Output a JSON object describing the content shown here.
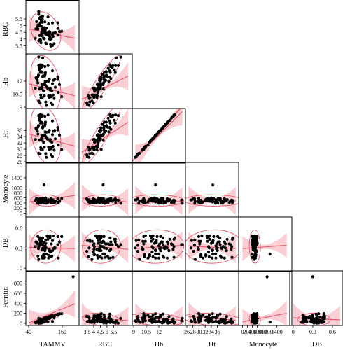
{
  "chart_data": {
    "type": "scatter",
    "variables": [
      "RBC",
      "Hb",
      "Ht",
      "Monocyte",
      "DB",
      "Ferritin"
    ],
    "x_variables": [
      "TAMMV",
      "RBC",
      "Hb",
      "Ht",
      "Monocyte",
      "DB"
    ],
    "axes": {
      "TAMMV": {
        "range": [
          35,
          215
        ],
        "ticks": [
          {
            "v": 40,
            "t": "40"
          },
          {
            "v": 160,
            "t": "160"
          }
        ]
      },
      "RBC": {
        "range": [
          3.0,
          6.8
        ],
        "ticks": [
          {
            "v": 3.5,
            "t": "3.5"
          },
          {
            "v": 4,
            "t": "4"
          },
          {
            "v": 4.5,
            "t": "4.5"
          },
          {
            "v": 5,
            "t": "5"
          },
          {
            "v": 5.5,
            "t": "5.5"
          }
        ]
      },
      "Hb": {
        "range": [
          9,
          15
        ],
        "ticks": [
          {
            "v": 9,
            "t": "9"
          },
          {
            "v": 10.5,
            "t": "10.5"
          },
          {
            "v": 12,
            "t": "12"
          }
        ]
      },
      "Ht": {
        "range": [
          26,
          42.5
        ],
        "ticks": [
          {
            "v": 26,
            "t": "26"
          },
          {
            "v": 28,
            "t": "28"
          },
          {
            "v": 30,
            "t": "30"
          },
          {
            "v": 32,
            "t": "32"
          },
          {
            "v": 34,
            "t": "34"
          },
          {
            "v": 36,
            "t": "36"
          }
        ]
      },
      "Monocyte": {
        "range": [
          -100,
          1950
        ],
        "ticks": [
          {
            "v": 0,
            "t": "0"
          },
          {
            "v": 200,
            "t": "200"
          },
          {
            "v": 400,
            "t": "400"
          },
          {
            "v": 600,
            "t": "600"
          },
          {
            "v": 800,
            "t": "800"
          },
          {
            "v": 1000,
            "t": "1000"
          },
          {
            "v": 1400,
            "t": "1400"
          }
        ]
      },
      "DB": {
        "range": [
          -0.03,
          0.74
        ],
        "ticks": [
          {
            "v": 0,
            "t": "0"
          },
          {
            "v": 0.3,
            "t": "0.3"
          },
          {
            "v": 0.6,
            "t": "0.6"
          }
        ]
      },
      "Ferritin": {
        "range": [
          -15,
          1020
        ],
        "ticks": [
          {
            "v": 0,
            "t": "0"
          },
          {
            "v": 200,
            "t": "200"
          },
          {
            "v": 400,
            "t": "400"
          },
          {
            "v": 600,
            "t": "600"
          },
          {
            "v": 800,
            "t": "800"
          }
        ]
      }
    },
    "panels": [
      {
        "x": "TAMMV",
        "y": "RBC",
        "fit": [
          [
            40,
            4.75
          ],
          [
            205,
            4.05
          ]
        ]
      },
      {
        "x": "TAMMV",
        "y": "Hb",
        "fit": [
          [
            40,
            11.7
          ],
          [
            205,
            10.3
          ]
        ]
      },
      {
        "x": "RBC",
        "y": "Hb",
        "fit": [
          [
            3.1,
            9.9
          ],
          [
            6.6,
            12.6
          ]
        ]
      },
      {
        "x": "TAMMV",
        "y": "Ht",
        "fit": [
          [
            40,
            34.8
          ],
          [
            205,
            31.0
          ]
        ]
      },
      {
        "x": "RBC",
        "y": "Ht",
        "fit": [
          [
            3.1,
            29.0
          ],
          [
            6.6,
            38.6
          ]
        ]
      },
      {
        "x": "Hb",
        "y": "Ht",
        "fit": [
          [
            9.2,
            27.0
          ],
          [
            14.8,
            42.0
          ]
        ]
      },
      {
        "x": "TAMMV",
        "y": "Monocyte",
        "fit": [
          [
            40,
            440
          ],
          [
            205,
            700
          ]
        ]
      },
      {
        "x": "RBC",
        "y": "Monocyte",
        "fit": [
          [
            3.1,
            600
          ],
          [
            6.6,
            440
          ]
        ]
      },
      {
        "x": "Hb",
        "y": "Monocyte",
        "fit": [
          [
            9.2,
            520
          ],
          [
            14.8,
            470
          ]
        ]
      },
      {
        "x": "Ht",
        "y": "Monocyte",
        "fit": [
          [
            26.5,
            520
          ],
          [
            42,
            480
          ]
        ]
      },
      {
        "x": "TAMMV",
        "y": "DB",
        "fit": [
          [
            40,
            0.31
          ],
          [
            205,
            0.29
          ]
        ]
      },
      {
        "x": "RBC",
        "y": "DB",
        "fit": [
          [
            3.1,
            0.34
          ],
          [
            6.6,
            0.28
          ]
        ]
      },
      {
        "x": "Hb",
        "y": "DB",
        "fit": [
          [
            9.2,
            0.29
          ],
          [
            14.8,
            0.34
          ]
        ]
      },
      {
        "x": "Ht",
        "y": "DB",
        "fit": [
          [
            26.5,
            0.33
          ],
          [
            42,
            0.29
          ]
        ]
      },
      {
        "x": "Monocyte",
        "y": "DB",
        "fit": [
          [
            0,
            0.29
          ],
          [
            1800,
            0.34
          ]
        ]
      },
      {
        "x": "TAMMV",
        "y": "Ferritin",
        "fit": [
          [
            40,
            10
          ],
          [
            205,
            390
          ]
        ]
      },
      {
        "x": "RBC",
        "y": "Ferritin",
        "fit": [
          [
            3.1,
            130
          ],
          [
            6.6,
            55
          ]
        ]
      },
      {
        "x": "Hb",
        "y": "Ferritin",
        "fit": [
          [
            9.2,
            120
          ],
          [
            14.8,
            60
          ]
        ]
      },
      {
        "x": "Ht",
        "y": "Ferritin",
        "fit": [
          [
            26.5,
            135
          ],
          [
            42,
            60
          ]
        ]
      },
      {
        "x": "Monocyte",
        "y": "Ferritin",
        "fit": [
          [
            0,
            30
          ],
          [
            1800,
            200
          ]
        ]
      },
      {
        "x": "DB",
        "y": "Ferritin",
        "fit": [
          [
            0,
            110
          ],
          [
            0.72,
            70
          ]
        ]
      }
    ],
    "data": {
      "TAMMV": [
        114,
        103,
        79,
        83,
        146,
        95,
        78,
        81,
        96,
        76,
        91,
        125,
        68,
        85,
        66,
        82,
        89,
        127,
        89,
        99,
        94,
        158,
        73,
        87,
        128,
        101,
        71,
        76,
        116,
        109,
        131,
        86,
        125,
        118,
        76,
        103,
        150,
        99,
        90,
        101,
        111,
        89,
        75,
        79,
        116,
        117,
        123,
        95,
        85,
        144,
        97,
        135,
        98,
        133,
        73,
        84,
        144,
        93,
        107,
        111,
        88,
        98,
        64,
        125,
        120,
        82,
        114,
        121,
        100,
        88,
        90,
        106
      ],
      "RBC": [
        4.02,
        3.65,
        4.26,
        3.89,
        4.31,
        4.71,
        5.55,
        3.97,
        4.02,
        6.04,
        4.79,
        3.52,
        5.29,
        5.4,
        4.76,
        5.63,
        4.24,
        4.19,
        5.25,
        4.5,
        4.61,
        4.57,
        5.05,
        4.26,
        4.43,
        4.36,
        4.9,
        5.85,
        4.16,
        5.65,
        3.66,
        4.47,
        5.2,
        3.59,
        3.87,
        4.81,
        4.55,
        4.67,
        5.71,
        3.7,
        4.27,
        5.45,
        4.97,
        5.09,
        4.48,
        3.98,
        4.33,
        4.59,
        4.95,
        4.78,
        4.85,
        4.49,
        5.28,
        4.44,
        4.74,
        3.72,
        5.21,
        4.06,
        4.32,
        5.13,
        4.72,
        4.42,
        4.05,
        4.33,
        3.48,
        5.23,
        4.55,
        4.03,
        4.8,
        4.51,
        4.54,
        4.43
      ],
      "Hb": [
        10.1,
        9.2,
        11.1,
        10.4,
        10.7,
        11.6,
        13.3,
        9.5,
        10.3,
        14.8,
        12.6,
        9.3,
        12.3,
        13.6,
        12.4,
        13.0,
        10.1,
        10.4,
        13.0,
        12.0,
        11.6,
        10.2,
        12.5,
        11.6,
        12.1,
        11.5,
        12.1,
        13.8,
        11.0,
        13.8,
        10.0,
        11.3,
        13.2,
        10.3,
        9.7,
        12.0,
        11.6,
        12.8,
        14.7,
        9.6,
        10.3,
        13.8,
        12.7,
        13.5,
        11.1,
        11.2,
        10.9,
        11.7,
        13.1,
        12.2,
        12.6,
        11.3,
        13.7,
        12.2,
        11.8,
        10.1,
        12.5,
        10.9,
        11.2,
        12.0,
        11.1,
        11.6,
        11.2,
        11.7,
        9.5,
        13.9,
        12.2,
        10.2,
        13.0,
        11.3,
        12.5,
        11.3
      ],
      "Ht": [
        29.8,
        27.4,
        32.9,
        30.5,
        31.3,
        34.5,
        39.2,
        28.5,
        30.6,
        43.7,
        37.2,
        27.6,
        36.3,
        40.3,
        36.7,
        38.3,
        29.8,
        30.9,
        38.3,
        35.5,
        34.3,
        29.9,
        37.0,
        34.4,
        35.7,
        34.0,
        35.8,
        40.7,
        32.6,
        40.9,
        29.7,
        33.5,
        39.0,
        30.6,
        28.7,
        35.4,
        34.4,
        37.9,
        43.4,
        28.6,
        30.6,
        40.8,
        37.5,
        39.9,
        32.8,
        33.1,
        32.2,
        34.5,
        38.6,
        36.1,
        37.3,
        33.3,
        40.5,
        36.0,
        34.8,
        30.0,
        36.9,
        32.2,
        33.2,
        35.5,
        32.8,
        34.4,
        33.1,
        34.6,
        28.2,
        41.0,
        36.0,
        30.2,
        38.6,
        33.3,
        36.8,
        33.5
      ],
      "Monocyte": [
        518,
        524,
        506,
        401,
        437,
        1117,
        534,
        567,
        506,
        390,
        463,
        518,
        584,
        470,
        525,
        567,
        433,
        406,
        520,
        454,
        449,
        585,
        539,
        439,
        512,
        602,
        405,
        516,
        497,
        423,
        453,
        561,
        508,
        455,
        474,
        389,
        469,
        428,
        519,
        398,
        502,
        507,
        456,
        421,
        479,
        530,
        480,
        587,
        473,
        398,
        390,
        483,
        499,
        424,
        564,
        482,
        570,
        544,
        492,
        529,
        570,
        551,
        495,
        462,
        564,
        494,
        497,
        415,
        518,
        488,
        591,
        467
      ],
      "DB": [
        0.28,
        0.3,
        0.45,
        0.4,
        0.15,
        0.21,
        0.43,
        0.34,
        0.2,
        0.35,
        0.3,
        0.41,
        0.39,
        0.35,
        0.39,
        0.39,
        0.28,
        0.48,
        0.15,
        0.33,
        0.15,
        0.47,
        0.18,
        0.27,
        0.29,
        0.37,
        0.36,
        0.32,
        0.48,
        0.43,
        0.3,
        0.43,
        0.26,
        0.17,
        0.13,
        0.21,
        0.39,
        0.32,
        0.35,
        0.42,
        0.19,
        0.16,
        0.29,
        0.36,
        0.45,
        0.24,
        0.18,
        0.38,
        0.36,
        0.47,
        0.16,
        0.3,
        0.28,
        0.3,
        0.47,
        0.4,
        0.35,
        0.2,
        0.47,
        0.15,
        0.4,
        0.26,
        0.32,
        0.41,
        0.25,
        0.45,
        0.26,
        0.36,
        0.3,
        0.17,
        0.45,
        0.48
      ],
      "Ferritin": [
        93,
        50,
        53,
        53,
        162,
        26,
        16,
        87,
        106,
        100,
        21,
        36,
        22,
        58,
        7,
        8,
        71,
        148,
        53,
        45,
        45,
        194,
        42,
        36,
        132,
        96,
        32,
        3,
        128,
        32,
        106,
        41,
        135,
        136,
        21,
        117,
        192,
        70,
        49,
        52,
        103,
        20,
        47,
        28,
        110,
        106,
        122,
        32,
        3,
        165,
        81,
        163,
        87,
        147,
        30,
        25,
        185,
        57,
        114,
        105,
        62,
        108,
        16,
        127,
        137,
        18,
        134,
        152,
        72,
        32,
        46,
        93
      ]
    },
    "extra_points": [
      {
        "x": "Monocyte",
        "y": "Ferritin",
        "values": [
          [
            1000,
            930
          ]
        ]
      },
      {
        "x": "DB",
        "y": "Ferritin",
        "values": [
          [
            0.3,
            930
          ]
        ]
      },
      {
        "x": "TAMMV",
        "y": "Ferritin",
        "values": [
          [
            199,
            930
          ]
        ]
      }
    ],
    "styling": {
      "point_color": "#000000",
      "fit_line_color": "#e8576a",
      "band_color": "#f4a6b0",
      "ellipse_color": "#e8576a",
      "frame_color": "#000000"
    }
  }
}
